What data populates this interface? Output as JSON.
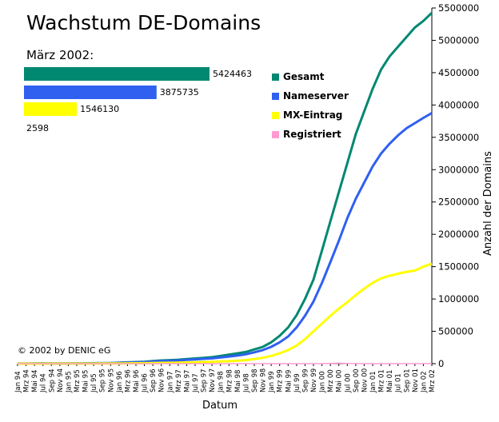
{
  "chart_data": {
    "type": "line",
    "title": "Wachstum DE-Domains",
    "subtitle": "März 2002:",
    "xlabel": "Datum",
    "ylabel": "Anzahl der Domains",
    "ylim": [
      0,
      5500000
    ],
    "yticks": [
      "0",
      "500000",
      "1000000",
      "1500000",
      "2000000",
      "2500000",
      "3000000",
      "3500000",
      "4000000",
      "4500000",
      "5000000",
      "5500000"
    ],
    "x_ticklabels": [
      "Jan 94",
      "Mrz 94",
      "Mai 94",
      "Jul 94",
      "Sep 94",
      "Nov 94",
      "Jan 95",
      "Mrz 95",
      "Mai 95",
      "Jul 95",
      "Sep 95",
      "Nov 95",
      "Jan 96",
      "Mrz 96",
      "Mai 96",
      "Jul 96",
      "Sep 96",
      "Nov 96",
      "Jan 97",
      "Mrz 97",
      "Mai 97",
      "Jul 97",
      "Sep 97",
      "Nov 97",
      "Jan 98",
      "Mrz 98",
      "Mai 98",
      "Jul 98",
      "Sep 98",
      "Nov 98",
      "Jan 99",
      "Mrz 99",
      "Mai 99",
      "Jul 99",
      "Sep 99",
      "Nov 99",
      "Jan 00",
      "Mrz 00",
      "Mai 00",
      "Jul 00",
      "Sep 00",
      "Nov 00",
      "Jan 01",
      "Mrz 01",
      "Mai 01",
      "Jul 01",
      "Sep 01",
      "Nov 01",
      "Jan 02",
      "Mrz 02"
    ],
    "series": [
      {
        "name": "Gesamt",
        "color": "#008870",
        "values": [
          1000,
          1500,
          2000,
          2500,
          3000,
          3500,
          4000,
          5000,
          6000,
          7000,
          8000,
          10000,
          15000,
          20000,
          25000,
          30000,
          40000,
          50000,
          55000,
          60000,
          70000,
          80000,
          90000,
          100000,
          120000,
          140000,
          160000,
          180000,
          220000,
          260000,
          330000,
          430000,
          560000,
          750000,
          1000000,
          1300000,
          1750000,
          2200000,
          2650000,
          3100000,
          3550000,
          3900000,
          4250000,
          4550000,
          4750000,
          4900000,
          5050000,
          5200000,
          5300000,
          5424463
        ]
      },
      {
        "name": "Nameserver",
        "color": "#3060f0",
        "values": [
          800,
          1200,
          1600,
          2000,
          2500,
          3000,
          3500,
          4000,
          5000,
          6000,
          7000,
          8000,
          12000,
          16000,
          20000,
          25000,
          32000,
          40000,
          45000,
          50000,
          58000,
          66000,
          74000,
          82000,
          96000,
          110000,
          125000,
          145000,
          175000,
          210000,
          260000,
          330000,
          420000,
          560000,
          740000,
          960000,
          1250000,
          1570000,
          1900000,
          2250000,
          2550000,
          2800000,
          3050000,
          3250000,
          3400000,
          3530000,
          3640000,
          3720000,
          3800000,
          3875735
        ]
      },
      {
        "name": "MX-Eintrag",
        "color": "#ffff00",
        "values": [
          300,
          400,
          500,
          600,
          700,
          800,
          1000,
          1200,
          1500,
          1800,
          2000,
          2500,
          3500,
          5000,
          6500,
          8000,
          10000,
          12000,
          14000,
          16000,
          19000,
          22000,
          25000,
          28000,
          33000,
          38000,
          45000,
          55000,
          70000,
          90000,
          120000,
          160000,
          210000,
          280000,
          380000,
          500000,
          620000,
          740000,
          850000,
          950000,
          1060000,
          1160000,
          1250000,
          1320000,
          1360000,
          1390000,
          1420000,
          1440000,
          1500000,
          1546130
        ]
      },
      {
        "name": "Registriert",
        "color": "#ff9ad0",
        "values": [
          0,
          0,
          0,
          0,
          0,
          0,
          0,
          0,
          0,
          0,
          0,
          0,
          0,
          0,
          0,
          0,
          0,
          0,
          0,
          0,
          0,
          0,
          0,
          0,
          0,
          0,
          0,
          0,
          0,
          0,
          0,
          0,
          0,
          0,
          0,
          0,
          0,
          3000,
          8000,
          3000,
          1000,
          500,
          0,
          0,
          0,
          0,
          0,
          0,
          0,
          2598
        ]
      }
    ],
    "latest": [
      {
        "name": "Gesamt",
        "value": 5424463,
        "label": "5424463",
        "color": "#008870"
      },
      {
        "name": "Nameserver",
        "value": 3875735,
        "label": "3875735",
        "color": "#3060f0"
      },
      {
        "name": "MX-Eintrag",
        "value": 1546130,
        "label": "1546130",
        "color": "#ffff00"
      },
      {
        "name": "Registriert",
        "value": 2598,
        "label": "2598",
        "color": "#ff9ad0"
      }
    ]
  },
  "copyright": "© 2002 by DENIC eG"
}
